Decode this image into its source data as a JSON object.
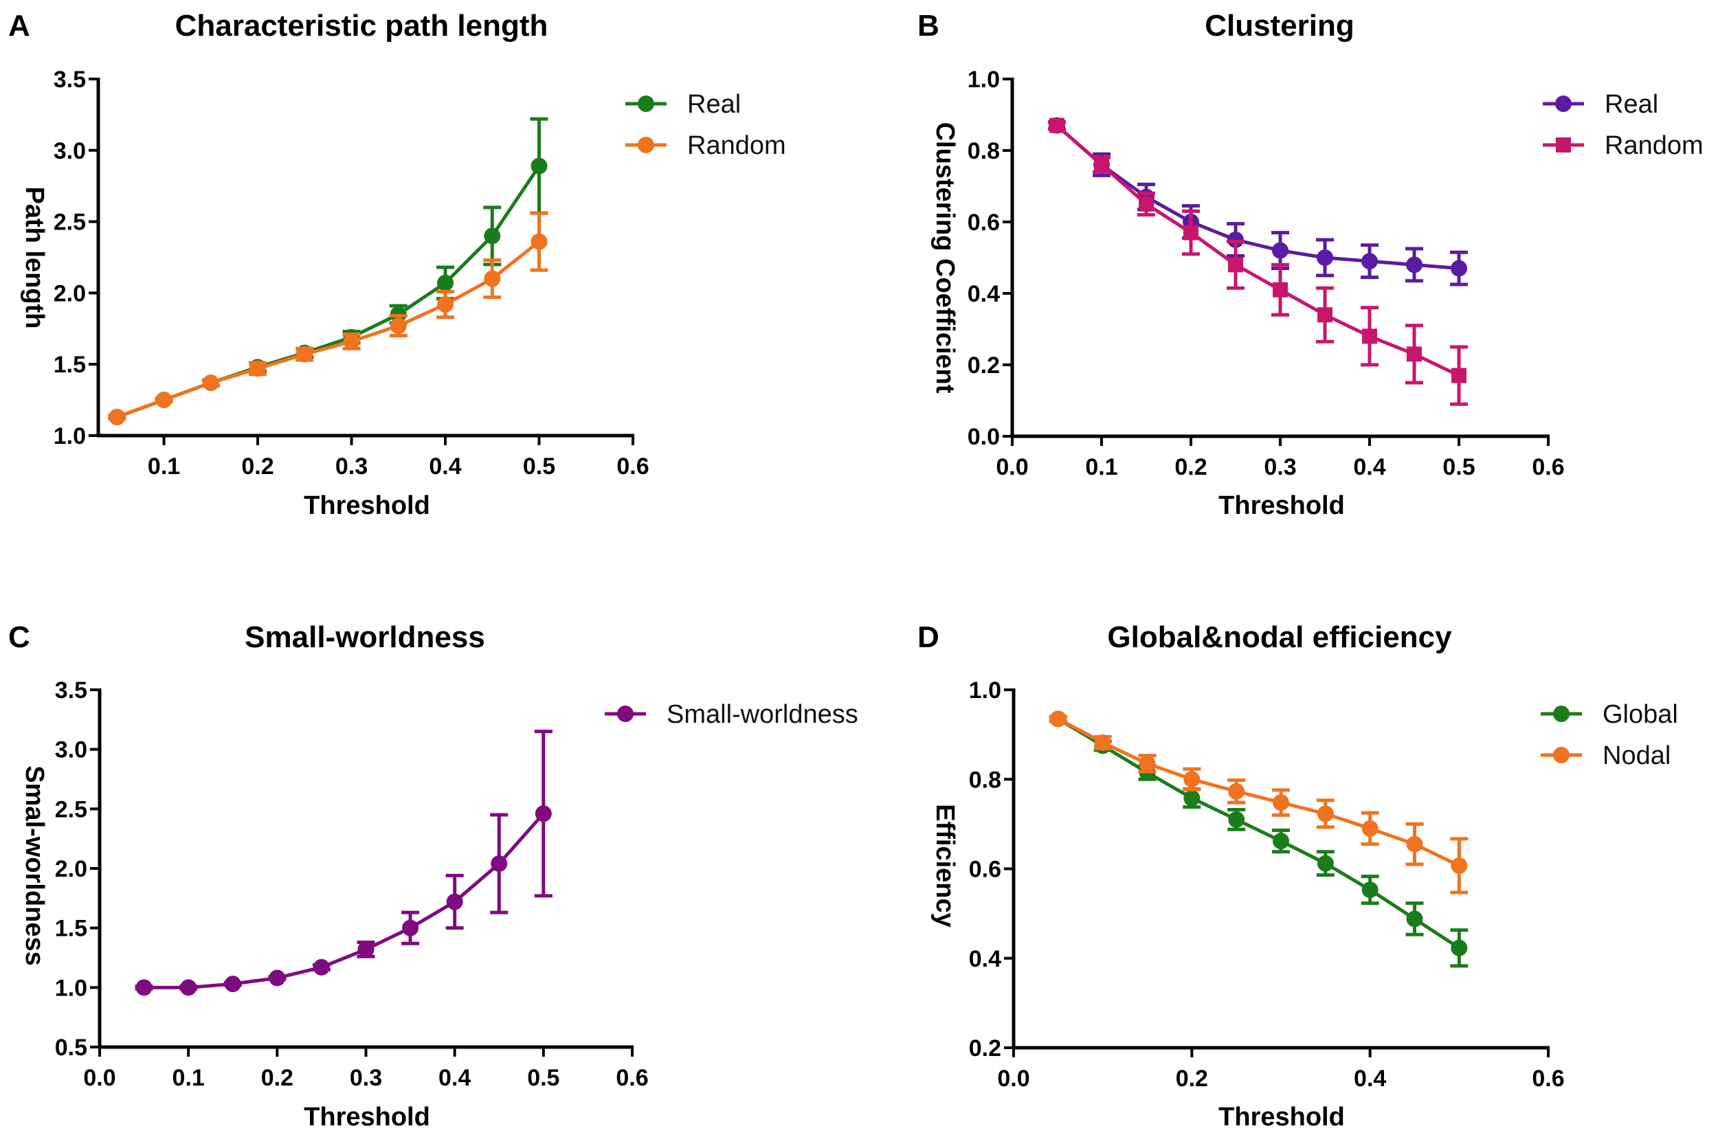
{
  "chart_data": [
    {
      "panel_letter": "A",
      "type": "line",
      "title": "Characteristic path length",
      "xlabel": "Threshold",
      "ylabel": "Path length",
      "xlim": [
        0.03,
        0.6
      ],
      "ylim": [
        1.0,
        3.5
      ],
      "xticks": [
        "0.1",
        "0.2",
        "0.3",
        "0.4",
        "0.5",
        "0.6"
      ],
      "yticks": [
        "1.0",
        "1.5",
        "2.0",
        "2.5",
        "3.0",
        "3.5"
      ],
      "legend_position": "top-right",
      "x": [
        0.05,
        0.1,
        0.15,
        0.2,
        0.25,
        0.3,
        0.35,
        0.4,
        0.45,
        0.5
      ],
      "series": [
        {
          "name": "Real",
          "color": "#1b7c1b",
          "marker": "circle",
          "values": [
            1.13,
            1.25,
            1.37,
            1.48,
            1.58,
            1.69,
            1.85,
            2.07,
            2.4,
            2.89
          ],
          "error": [
            0.01,
            0.01,
            0.02,
            0.03,
            0.03,
            0.04,
            0.06,
            0.11,
            0.2,
            0.33
          ]
        },
        {
          "name": "Random",
          "color": "#f0731f",
          "marker": "circle",
          "values": [
            1.13,
            1.25,
            1.37,
            1.47,
            1.57,
            1.66,
            1.77,
            1.92,
            2.1,
            2.36
          ],
          "error": [
            0.01,
            0.01,
            0.02,
            0.04,
            0.04,
            0.05,
            0.07,
            0.09,
            0.13,
            0.2
          ]
        }
      ]
    },
    {
      "panel_letter": "B",
      "type": "line",
      "title": "Clustering",
      "xlabel": "Threshold",
      "ylabel": "Clustering Coefficient",
      "xlim": [
        0.0,
        0.6
      ],
      "ylim": [
        0.0,
        1.0
      ],
      "xticks": [
        "0.0",
        "0.1",
        "0.2",
        "0.3",
        "0.4",
        "0.5",
        "0.6"
      ],
      "yticks": [
        "0.0",
        "0.2",
        "0.4",
        "0.6",
        "0.8",
        "1.0"
      ],
      "legend_position": "top-right",
      "x": [
        0.05,
        0.1,
        0.15,
        0.2,
        0.25,
        0.3,
        0.35,
        0.4,
        0.45,
        0.5
      ],
      "series": [
        {
          "name": "Real",
          "color": "#5a1ca0",
          "marker": "circle",
          "values": [
            0.87,
            0.76,
            0.67,
            0.6,
            0.55,
            0.52,
            0.5,
            0.49,
            0.48,
            0.47
          ],
          "error": [
            0.01,
            0.03,
            0.035,
            0.045,
            0.045,
            0.05,
            0.05,
            0.045,
            0.045,
            0.045
          ]
        },
        {
          "name": "Random",
          "color": "#c8166c",
          "marker": "square",
          "values": [
            0.87,
            0.76,
            0.65,
            0.57,
            0.48,
            0.41,
            0.34,
            0.28,
            0.23,
            0.17
          ],
          "error": [
            0.01,
            0.02,
            0.03,
            0.06,
            0.065,
            0.07,
            0.075,
            0.08,
            0.08,
            0.08
          ]
        }
      ]
    },
    {
      "panel_letter": "C",
      "type": "line",
      "title": "Small-worldness",
      "xlabel": "Threshold",
      "ylabel": "Smal-worldness",
      "xlim": [
        0.0,
        0.6
      ],
      "ylim": [
        0.5,
        3.5
      ],
      "xticks": [
        "0.0",
        "0.1",
        "0.2",
        "0.3",
        "0.4",
        "0.5",
        "0.6"
      ],
      "yticks": [
        "0.5",
        "1.0",
        "1.5",
        "2.0",
        "2.5",
        "3.0",
        "3.5"
      ],
      "legend_position": "top-right",
      "x": [
        0.05,
        0.1,
        0.15,
        0.2,
        0.25,
        0.3,
        0.35,
        0.4,
        0.45,
        0.5
      ],
      "series": [
        {
          "name": "Small-worldness",
          "color": "#800a80",
          "marker": "circle",
          "values": [
            1.0,
            1.0,
            1.03,
            1.08,
            1.17,
            1.32,
            1.5,
            1.72,
            2.04,
            2.46
          ],
          "error": [
            0.01,
            0.01,
            0.01,
            0.01,
            0.02,
            0.06,
            0.13,
            0.22,
            0.41,
            0.69
          ]
        }
      ]
    },
    {
      "panel_letter": "D",
      "type": "line",
      "title": "Global&nodal efficiency",
      "xlabel": "Threshold",
      "ylabel": "Efficiency",
      "xlim": [
        0.0,
        0.6
      ],
      "ylim": [
        0.2,
        1.0
      ],
      "xticks": [
        "0.0",
        "0.2",
        "0.4",
        "0.6"
      ],
      "yticks": [
        "0.2",
        "0.4",
        "0.6",
        "0.8",
        "1.0"
      ],
      "legend_position": "top-right",
      "x": [
        0.05,
        0.1,
        0.15,
        0.2,
        0.25,
        0.3,
        0.35,
        0.4,
        0.45,
        0.5
      ],
      "series": [
        {
          "name": "Global",
          "color": "#1b7c1b",
          "marker": "circle",
          "values": [
            0.935,
            0.875,
            0.815,
            0.758,
            0.71,
            0.662,
            0.612,
            0.553,
            0.488,
            0.423
          ],
          "error": [
            0.005,
            0.01,
            0.015,
            0.02,
            0.022,
            0.024,
            0.026,
            0.03,
            0.035,
            0.04
          ]
        },
        {
          "name": "Nodal",
          "color": "#f0731f",
          "marker": "circle",
          "values": [
            0.935,
            0.882,
            0.835,
            0.8,
            0.773,
            0.748,
            0.723,
            0.69,
            0.655,
            0.607
          ],
          "error": [
            0.005,
            0.013,
            0.018,
            0.023,
            0.025,
            0.028,
            0.03,
            0.035,
            0.045,
            0.06
          ]
        }
      ]
    }
  ]
}
